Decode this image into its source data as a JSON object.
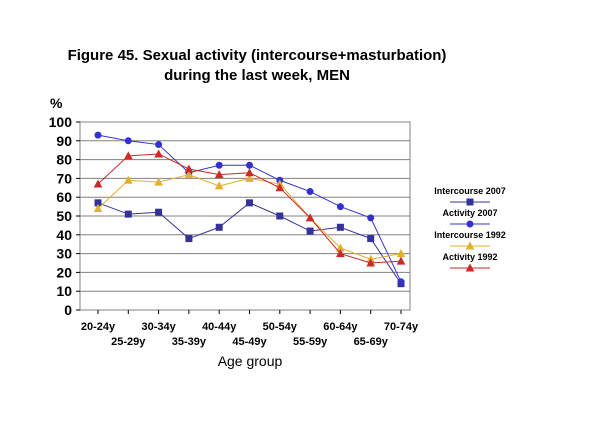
{
  "chart_data": {
    "type": "line",
    "title_line1": "Figure 45. Sexual activity (intercourse+masturbation)",
    "title_line2": "during the last week, MEN",
    "ylabel": "%",
    "xlabel": "Age group",
    "ylim": [
      0,
      100
    ],
    "yticks": [
      "0",
      "10",
      "20",
      "30",
      "40",
      "50",
      "60",
      "70",
      "80",
      "90",
      "100"
    ],
    "categories": [
      "20-24y",
      "25-29y",
      "30-34y",
      "35-39y",
      "40-44y",
      "45-49y",
      "50-54y",
      "55-59y",
      "60-64y",
      "65-69y",
      "70-74y"
    ],
    "grid": true,
    "legend_position": "right",
    "series": [
      {
        "name": "Intercourse 2007",
        "color": "#333399",
        "marker": "square",
        "values": [
          57,
          51,
          52,
          38,
          44,
          57,
          50,
          42,
          44,
          38,
          14
        ]
      },
      {
        "name": "Activity 2007",
        "color": "#3333cc",
        "marker": "circle",
        "values": [
          93,
          90,
          88,
          73,
          77,
          77,
          69,
          63,
          55,
          49,
          15
        ]
      },
      {
        "name": "Intercourse 1992",
        "color": "#e0b030",
        "marker": "triangle",
        "values": [
          54,
          69,
          68,
          72,
          66,
          70,
          67,
          49,
          33,
          27,
          30
        ]
      },
      {
        "name": "Activity 1992",
        "color": "#cc2a2a",
        "marker": "triangle",
        "values": [
          67,
          82,
          83,
          75,
          72,
          73,
          65,
          49,
          30,
          25,
          26
        ]
      }
    ]
  }
}
